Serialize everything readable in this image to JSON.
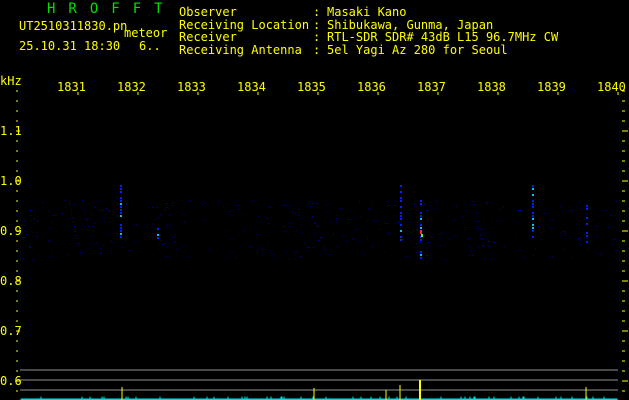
{
  "app_title": "HROFFT",
  "file_name": "UT2510311830.pn",
  "mode_label": "meteor",
  "datetime": "25.10.31 18:30",
  "count": "6..",
  "info": [
    {
      "label": "Observer",
      "value": "Masaki Kano"
    },
    {
      "label": "Receiving Location",
      "value": "Shibukawa, Gunma, Japan"
    },
    {
      "label": "Receiver",
      "value": "RTL-SDR SDR# 43dB L15 96.7MHz CW"
    },
    {
      "label": "Receiving Antenna",
      "value": "5el Yagi Az 280 for Seoul"
    }
  ],
  "axis": {
    "y_unit": "kHz",
    "x_labels": [
      "1831",
      "1832",
      "1833",
      "1834",
      "1835",
      "1836",
      "1837",
      "1838",
      "1839",
      "1840"
    ],
    "y_labels": [
      "1.1",
      "1.0",
      "0.9",
      "0.8",
      "0.7",
      "0.6"
    ],
    "y_range_khz": [
      0.58,
      1.18
    ]
  },
  "colors": {
    "text": "#ffff00",
    "title": "#00e000",
    "grid": "#909090",
    "spectrum": "#00e0e0",
    "signal": "#0000ff"
  }
}
